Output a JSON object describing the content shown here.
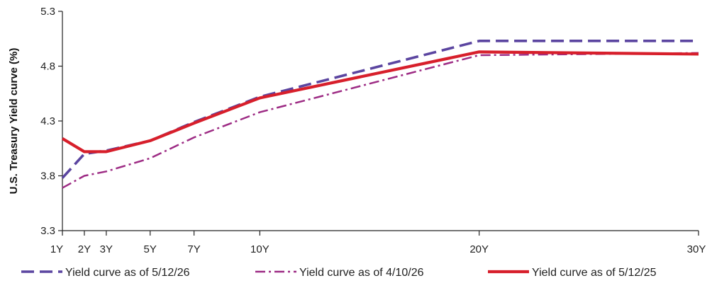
{
  "chart_data": {
    "type": "line",
    "title": "",
    "xlabel": "",
    "ylabel": "U.S. Treasury Yield curve (%)",
    "x_categories": [
      "1Y",
      "2Y",
      "3Y",
      "5Y",
      "7Y",
      "10Y",
      "20Y",
      "30Y"
    ],
    "x_positions_years": [
      1,
      2,
      3,
      5,
      7,
      10,
      20,
      30
    ],
    "xlim": [
      1,
      30
    ],
    "ylim": [
      3.3,
      5.3
    ],
    "yticks": [
      "3.3",
      "3.8",
      "4.3",
      "4.8",
      "5.3"
    ],
    "grid": false,
    "legend_position": "bottom",
    "series": [
      {
        "name": "Yield curve as of 5/12/26",
        "color": "#5b45a0",
        "style": "dashed",
        "x": [
          1,
          2,
          3,
          5,
          7,
          10,
          20,
          30
        ],
        "y": [
          3.78,
          4.0,
          4.03,
          4.12,
          4.29,
          4.52,
          5.03,
          5.03
        ]
      },
      {
        "name": "Yield curve as of 4/10/26",
        "color": "#9d2b84",
        "style": "dash-dot",
        "x": [
          1,
          2,
          3,
          5,
          7,
          10,
          20,
          30
        ],
        "y": [
          3.69,
          3.8,
          3.84,
          3.96,
          4.15,
          4.38,
          4.9,
          4.92
        ]
      },
      {
        "name": "Yield curve as of 5/12/25",
        "color": "#d71f2b",
        "style": "solid",
        "x": [
          1,
          2,
          3,
          5,
          7,
          10,
          20,
          30
        ],
        "y": [
          4.14,
          4.02,
          4.02,
          4.12,
          4.28,
          4.51,
          4.93,
          4.91
        ]
      }
    ]
  }
}
